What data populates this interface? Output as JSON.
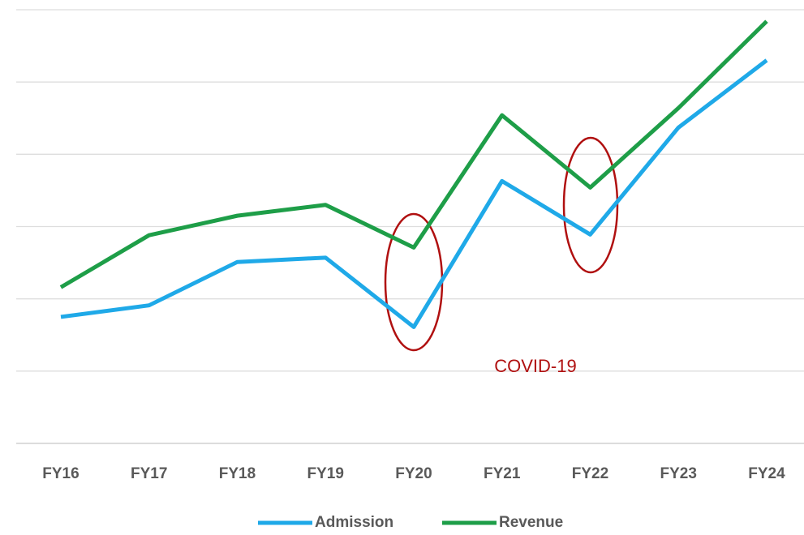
{
  "chart_data": {
    "type": "line",
    "categories": [
      "FY16",
      "FY17",
      "FY18",
      "FY19",
      "FY20",
      "FY21",
      "FY22",
      "FY23",
      "FY24"
    ],
    "series": [
      {
        "name": "Admission",
        "color": "#1fa9e8",
        "values": [
          1.75,
          1.91,
          2.51,
          2.57,
          1.61,
          3.63,
          2.89,
          4.37,
          5.3
        ]
      },
      {
        "name": "Revenue",
        "color": "#1e9e48",
        "values": [
          2.16,
          2.88,
          3.15,
          3.3,
          2.71,
          4.54,
          3.54,
          4.64,
          5.84
        ]
      }
    ],
    "ylim": [
      0,
      6
    ],
    "yticks": [
      0,
      1,
      2,
      3,
      4,
      5,
      6
    ],
    "grid": true,
    "annotation": "COVID-19",
    "annotation_color": "#b01010",
    "legend": "bottom"
  }
}
